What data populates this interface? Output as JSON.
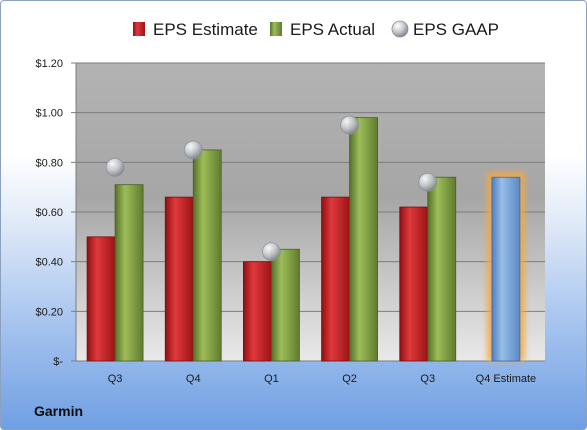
{
  "company": "Garmin",
  "chart_data": {
    "type": "bar",
    "categories": [
      "Q3",
      "Q4",
      "Q1",
      "Q2",
      "Q3",
      "Q4 Estimate"
    ],
    "series": [
      {
        "name": "EPS Estimate",
        "kind": "bar",
        "color": "#c81e22",
        "values": [
          0.5,
          0.66,
          0.4,
          0.66,
          0.62,
          null
        ]
      },
      {
        "name": "EPS Actual",
        "kind": "bar",
        "color": "#7a9a3a",
        "values": [
          0.71,
          0.85,
          0.45,
          0.98,
          0.74,
          null
        ]
      },
      {
        "name": "EPS GAAP",
        "kind": "marker",
        "color": "#b8bcc2",
        "values": [
          0.78,
          0.85,
          0.44,
          0.95,
          0.72,
          null
        ]
      }
    ],
    "highlight": {
      "category": "Q4 Estimate",
      "value": 0.74,
      "color": "#6f9fd6",
      "glow": "#f4a742"
    },
    "y_tick_labels": [
      "$-",
      "$0.20",
      "$0.40",
      "$0.60",
      "$0.80",
      "$1.00",
      "$1.20"
    ],
    "ylim": [
      0,
      1.2
    ],
    "grid": true,
    "legend_position": "top"
  }
}
